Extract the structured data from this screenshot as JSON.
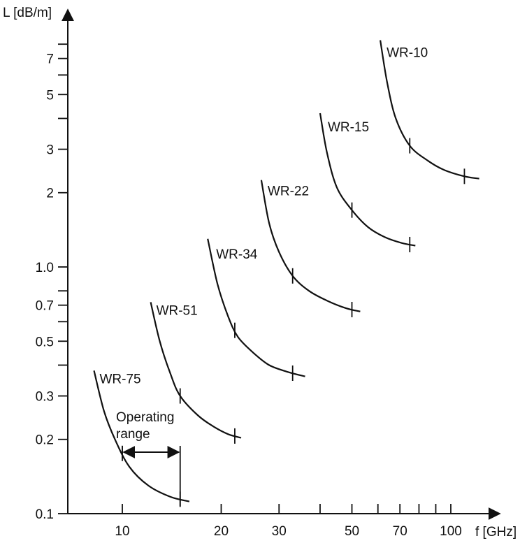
{
  "chart_data": {
    "type": "line",
    "x_scale": "log",
    "y_scale": "log",
    "xlabel": "f [GHz]",
    "ylabel": "L [dB/m]",
    "xlim": [
      7,
      135
    ],
    "ylim": [
      0.1,
      10
    ],
    "x_tick_labels": [
      {
        "value": 10,
        "label": "10"
      },
      {
        "value": 20,
        "label": "20"
      },
      {
        "value": 30,
        "label": "30"
      },
      {
        "value": 50,
        "label": "50"
      },
      {
        "value": 70,
        "label": "70"
      },
      {
        "value": 100,
        "label": "100"
      }
    ],
    "x_minor_ticks": [
      40,
      60,
      80,
      90
    ],
    "y_tick_labels": [
      {
        "value": 0.1,
        "label": "0.1"
      },
      {
        "value": 0.2,
        "label": "0.2"
      },
      {
        "value": 0.3,
        "label": "0.3"
      },
      {
        "value": 0.5,
        "label": "0.5"
      },
      {
        "value": 0.7,
        "label": "0.7"
      },
      {
        "value": 1.0,
        "label": "1.0"
      },
      {
        "value": 2,
        "label": "2"
      },
      {
        "value": 3,
        "label": "3"
      },
      {
        "value": 5,
        "label": "5"
      },
      {
        "value": 7,
        "label": "7"
      }
    ],
    "y_minor_ticks": [
      0.4,
      0.6,
      0.8,
      4,
      6,
      8
    ],
    "series": [
      {
        "name": "WR-75",
        "x": [
          8.2,
          8.8,
          9.5,
          10.5,
          12,
          14,
          16
        ],
        "y": [
          0.38,
          0.26,
          0.2,
          0.155,
          0.13,
          0.117,
          0.112
        ],
        "operating_range": [
          10,
          15
        ]
      },
      {
        "name": "WR-51",
        "x": [
          12.2,
          13,
          14,
          15,
          17,
          19,
          21,
          23
        ],
        "y": [
          0.72,
          0.5,
          0.37,
          0.3,
          0.25,
          0.225,
          0.21,
          0.203
        ],
        "operating_range": [
          15,
          22
        ]
      },
      {
        "name": "WR-34",
        "x": [
          18.2,
          19.5,
          21,
          22.5,
          25,
          28,
          32,
          36
        ],
        "y": [
          1.3,
          0.85,
          0.63,
          0.52,
          0.45,
          0.4,
          0.375,
          0.36
        ],
        "operating_range": [
          22,
          33
        ]
      },
      {
        "name": "WR-22",
        "x": [
          26.5,
          28,
          30,
          33,
          37,
          42,
          48,
          53
        ],
        "y": [
          2.25,
          1.5,
          1.15,
          0.92,
          0.8,
          0.73,
          0.68,
          0.66
        ],
        "operating_range": [
          33,
          50
        ]
      },
      {
        "name": "WR-15",
        "x": [
          40,
          42,
          45,
          50,
          56,
          63,
          71,
          78
        ],
        "y": [
          4.2,
          2.9,
          2.1,
          1.7,
          1.45,
          1.32,
          1.25,
          1.22
        ],
        "operating_range": [
          50,
          75
        ]
      },
      {
        "name": "WR-10",
        "x": [
          61,
          64,
          68,
          75,
          85,
          95,
          110,
          122
        ],
        "y": [
          8.3,
          5.6,
          4.0,
          3.1,
          2.7,
          2.48,
          2.33,
          2.28
        ],
        "operating_range": [
          75,
          110
        ]
      }
    ],
    "annotations": [
      {
        "text": "Operating",
        "target": "WR-75"
      },
      {
        "text": "range",
        "target": "WR-75"
      }
    ]
  }
}
